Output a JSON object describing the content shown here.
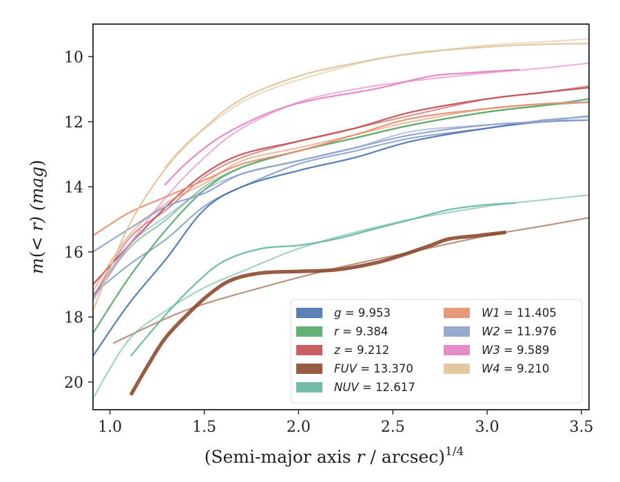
{
  "chart_data": {
    "type": "line",
    "xlabel": "(Semi-major axis r / arcsec)",
    "xlabel_var": "r",
    "xlabel_exponent": "1/4",
    "ylabel": "m(< r) (mag)",
    "xlim": [
      0.91,
      3.54
    ],
    "ylim": [
      20.85,
      9.0
    ],
    "y_inverted": true,
    "xticks": [
      "1.0",
      "1.5",
      "2.0",
      "2.5",
      "3.0",
      "3.5"
    ],
    "yticks": [
      "10",
      "12",
      "14",
      "16",
      "18",
      "20"
    ],
    "grid": false,
    "legend_position": "lower-right",
    "series": [
      {
        "name": "g = 9.953",
        "band": "g",
        "mag": "9.953",
        "color": "#4c72b0",
        "width": 1.5,
        "x": [
          0.91,
          1.1,
          1.3,
          1.5,
          1.7,
          2.0,
          2.3,
          2.6,
          3.0,
          3.3,
          3.54
        ],
        "y": [
          19.2,
          17.6,
          16.2,
          14.7,
          14.0,
          13.5,
          13.1,
          12.6,
          12.2,
          12.0,
          11.95
        ],
        "x2": [
          0.91,
          1.1,
          1.3,
          1.5,
          1.7,
          2.0,
          2.3,
          2.6,
          3.0,
          3.3,
          3.54
        ],
        "y2": [
          17.3,
          16.4,
          15.6,
          14.6,
          14.0,
          13.3,
          12.9,
          12.5,
          12.2,
          11.95,
          11.85
        ]
      },
      {
        "name": "r = 9.384",
        "band": "r",
        "mag": "9.384",
        "color": "#55a868",
        "width": 1.5,
        "x": [
          0.91,
          1.1,
          1.3,
          1.5,
          1.7,
          2.0,
          2.3,
          2.6,
          3.0,
          3.3,
          3.54
        ],
        "y": [
          18.5,
          16.8,
          15.3,
          14.1,
          13.4,
          12.9,
          12.5,
          12.1,
          11.7,
          11.5,
          11.3
        ],
        "x2": [
          0.91,
          1.1,
          1.3,
          1.5,
          1.7,
          2.0,
          2.3,
          2.6,
          3.0,
          3.3,
          3.54
        ],
        "y2": [
          17.4,
          15.9,
          15.0,
          14.0,
          13.4,
          12.9,
          12.5,
          12.1,
          11.7,
          11.5,
          11.4
        ]
      },
      {
        "name": "z = 9.212",
        "band": "z",
        "mag": "9.212",
        "color": "#c44e52",
        "width": 1.5,
        "x": [
          0.91,
          1.1,
          1.3,
          1.5,
          1.7,
          2.0,
          2.3,
          2.6,
          3.0,
          3.3,
          3.54
        ],
        "y": [
          17.0,
          15.8,
          14.6,
          13.6,
          13.0,
          12.6,
          12.2,
          11.7,
          11.3,
          11.1,
          10.95
        ],
        "x2": [
          0.91,
          1.1,
          1.3,
          1.5,
          1.7,
          2.0,
          2.3,
          2.6,
          3.0,
          3.3,
          3.54
        ],
        "y2": [
          17.4,
          15.6,
          14.7,
          13.7,
          13.1,
          12.6,
          12.2,
          11.8,
          11.3,
          11.1,
          10.9
        ]
      },
      {
        "name": "FUV = 13.370",
        "band": "FUV",
        "mag": "13.370",
        "color": "#8c4a2c",
        "width": 4.5,
        "x": [
          1.11,
          1.2,
          1.3,
          1.45,
          1.55,
          1.65,
          1.8,
          2.0,
          2.2,
          2.4,
          2.55,
          2.7,
          2.8,
          2.95,
          3.1
        ],
        "y": [
          20.4,
          19.5,
          18.6,
          17.7,
          17.2,
          16.85,
          16.65,
          16.6,
          16.55,
          16.35,
          16.1,
          15.8,
          15.6,
          15.5,
          15.4
        ],
        "x2": [
          1.02,
          1.4,
          1.8,
          2.2,
          2.6,
          3.0,
          3.3,
          3.54
        ],
        "y2": [
          18.8,
          17.8,
          17.1,
          16.5,
          16.0,
          15.5,
          15.2,
          14.95
        ]
      },
      {
        "name": "NUV = 12.617",
        "band": "NUV",
        "mag": "12.617",
        "color": "#64b5a0",
        "width": 1.5,
        "x": [
          1.11,
          1.3,
          1.45,
          1.6,
          1.8,
          2.0,
          2.2,
          2.4,
          2.6,
          2.8,
          3.0,
          3.15
        ],
        "y": [
          19.2,
          17.9,
          17.0,
          16.3,
          15.9,
          15.8,
          15.6,
          15.3,
          15.0,
          14.7,
          14.55,
          14.5
        ],
        "x2": [
          0.91,
          1.1,
          1.3,
          1.5,
          1.7,
          2.0,
          2.3,
          2.6,
          3.0,
          3.3,
          3.54
        ],
        "y2": [
          20.5,
          18.7,
          17.8,
          17.1,
          16.6,
          15.9,
          15.4,
          15.0,
          14.6,
          14.4,
          14.25
        ]
      },
      {
        "name": "W1 = 11.405",
        "band": "W1",
        "mag": "11.405",
        "color": "#e58e6b",
        "width": 1.5,
        "x": [
          0.91,
          1.1,
          1.3,
          1.5,
          1.7,
          2.0,
          2.3,
          2.6,
          3.0,
          3.3,
          3.54
        ],
        "y": [
          15.5,
          14.8,
          14.3,
          13.8,
          13.3,
          12.9,
          12.4,
          11.9,
          11.6,
          11.45,
          11.4
        ],
        "x2": [
          0.91,
          1.1,
          1.3,
          1.5,
          1.7,
          2.0,
          2.3,
          2.6,
          3.0,
          3.3,
          3.54
        ],
        "y2": [
          17.2,
          15.5,
          14.5,
          13.9,
          13.2,
          12.8,
          12.4,
          12.0,
          11.6,
          11.45,
          11.4
        ]
      },
      {
        "name": "W2 = 11.976",
        "band": "W2",
        "mag": "11.976",
        "color": "#8da0cb",
        "width": 1.5,
        "x": [
          0.91,
          1.1,
          1.3,
          1.5,
          1.7,
          2.0,
          2.3,
          2.6,
          3.0,
          3.3,
          3.54
        ],
        "y": [
          16.0,
          15.3,
          14.6,
          14.2,
          13.6,
          13.2,
          12.8,
          12.4,
          12.1,
          12.0,
          11.95
        ],
        "x2": [
          0.91,
          1.1,
          1.3,
          1.5,
          1.7,
          2.0,
          2.3,
          2.6,
          3.0,
          3.3,
          3.54
        ],
        "y2": [
          17.4,
          15.8,
          14.9,
          14.1,
          13.6,
          13.2,
          12.8,
          12.3,
          12.1,
          12.0,
          11.8
        ]
      },
      {
        "name": "W3 = 9.589",
        "band": "W3",
        "mag": "9.589",
        "color": "#e17fc2",
        "width": 1.5,
        "x": [
          1.29,
          1.4,
          1.55,
          1.7,
          1.9,
          2.1,
          2.4,
          2.7,
          2.9,
          3.17
        ],
        "y": [
          13.95,
          13.3,
          12.6,
          12.1,
          11.6,
          11.3,
          11.0,
          10.6,
          10.5,
          10.4
        ],
        "x2": [
          0.91,
          1.1,
          1.3,
          1.5,
          1.7,
          2.0,
          2.3,
          2.6,
          3.0,
          3.3,
          3.54
        ],
        "y2": [
          17.5,
          15.8,
          14.3,
          13.1,
          12.2,
          11.4,
          11.0,
          10.75,
          10.5,
          10.35,
          10.2
        ]
      },
      {
        "name": "W4 = 9.210",
        "band": "W4",
        "mag": "9.210",
        "color": "#dfc39a",
        "width": 1.5,
        "x": [
          0.91,
          1.1,
          1.3,
          1.5,
          1.7,
          2.0,
          2.3,
          2.6,
          3.0,
          3.3,
          3.54
        ],
        "y": [
          17.8,
          15.2,
          13.4,
          12.2,
          11.3,
          10.6,
          10.2,
          9.9,
          9.7,
          9.62,
          9.6
        ],
        "x2": [
          1.29,
          1.4,
          1.55,
          1.7,
          1.9,
          2.1,
          2.4,
          2.7,
          3.0,
          3.3,
          3.54
        ],
        "y2": [
          13.4,
          12.7,
          12.0,
          11.4,
          10.9,
          10.55,
          10.1,
          9.85,
          9.65,
          9.55,
          9.45
        ]
      }
    ]
  }
}
